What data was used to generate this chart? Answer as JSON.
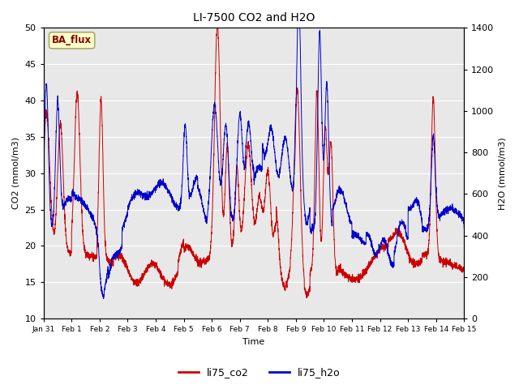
{
  "title": "LI-7500 CO2 and H2O",
  "xlabel": "Time",
  "ylabel_left": "CO2 (mmol/m3)",
  "ylabel_right": "H2O (mmol/m3)",
  "legend_label": "BA_flux",
  "series1_label": "li75_co2",
  "series2_label": "li75_h2o",
  "color1": "#cc0000",
  "color2": "#0000cc",
  "ylim_left": [
    10,
    50
  ],
  "ylim_right": [
    0,
    1400
  ],
  "axes_facecolor": "#e8e8e8",
  "figure_facecolor": "#ffffff",
  "legend_box_facecolor": "#ffffcc",
  "legend_box_edgecolor": "#aaaa66",
  "legend_text_color": "#880000",
  "xtick_dates": [
    "Jan 31",
    "Feb 1",
    "Feb 2",
    "Feb 3",
    "Feb 4",
    "Feb 5",
    "Feb 6",
    "Feb 7",
    "Feb 8",
    "Feb 9",
    "Feb 10",
    "Feb 11",
    "Feb 12",
    "Feb 13",
    "Feb 14",
    "Feb 15"
  ],
  "yticks_left": [
    10,
    15,
    20,
    25,
    30,
    35,
    40,
    45,
    50
  ],
  "yticks_right": [
    0,
    200,
    400,
    600,
    800,
    1000,
    1200,
    1400
  ],
  "grid_color": "#ffffff",
  "linewidth": 0.7,
  "seed": 7
}
